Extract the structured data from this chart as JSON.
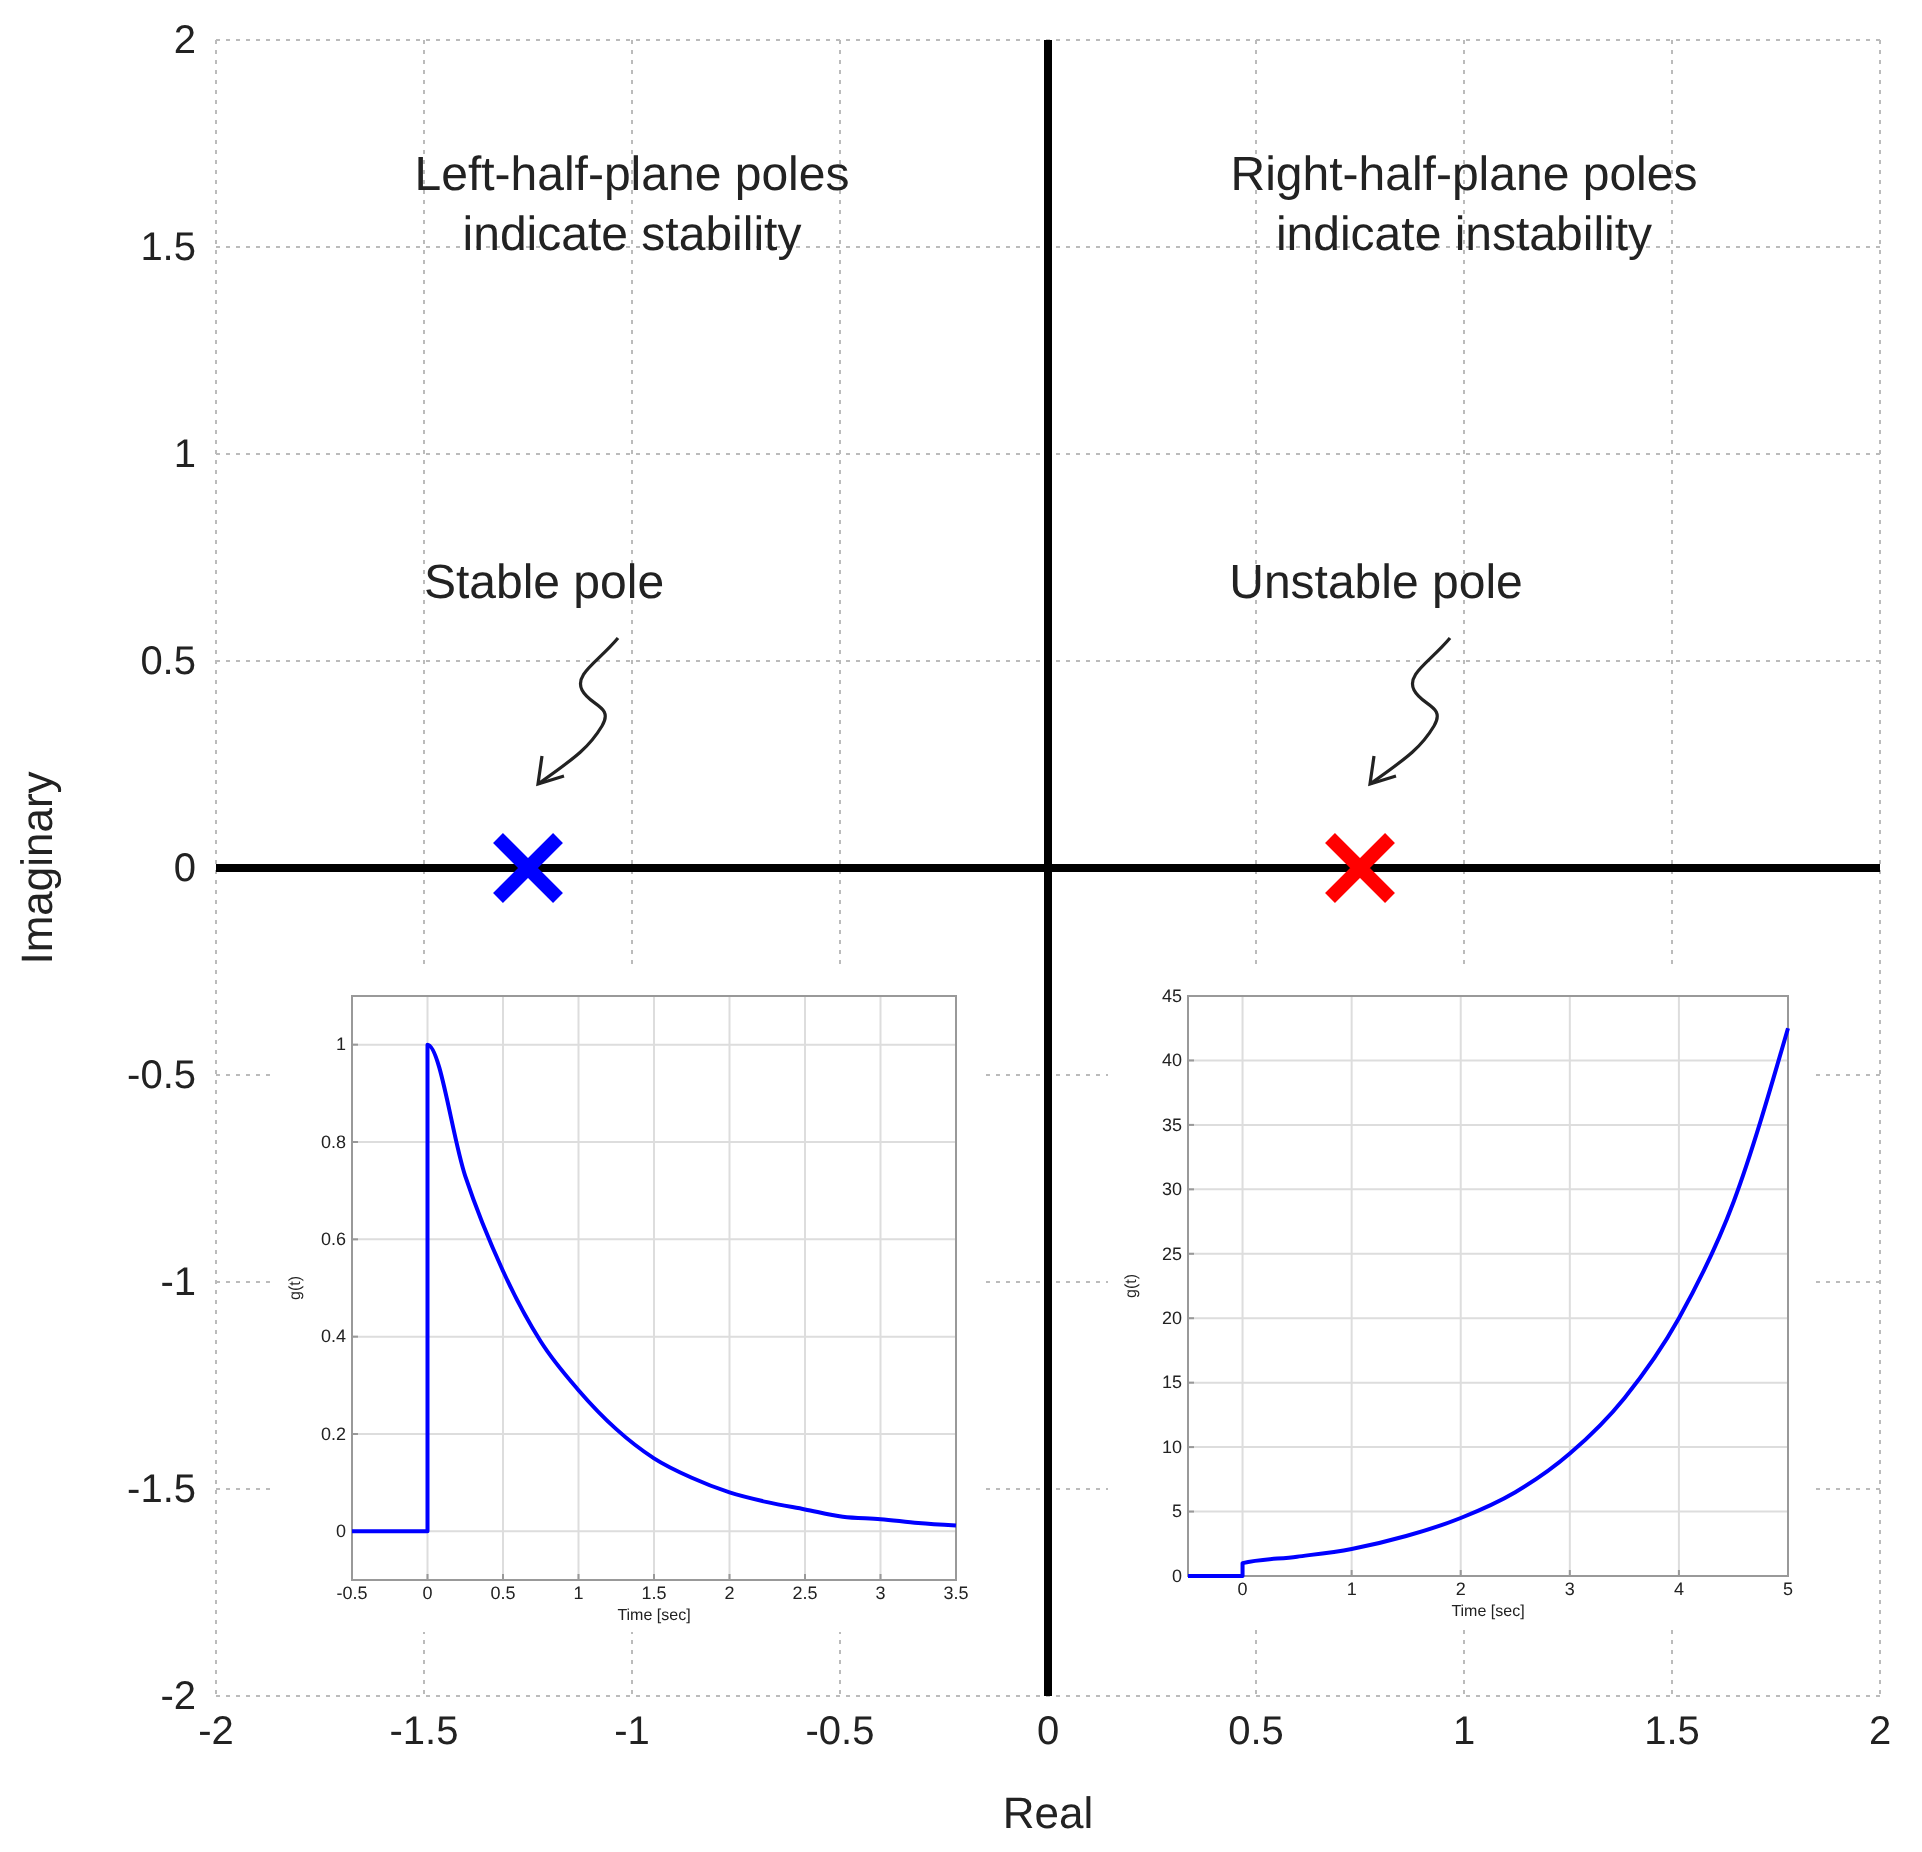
{
  "chart_data": [
    {
      "type": "scatter",
      "xlabel": "Real",
      "ylabel": "Imaginary",
      "xlim": [
        -2,
        2
      ],
      "ylim": [
        -2,
        2
      ],
      "xticks": [
        -2,
        -1.5,
        -1,
        -0.5,
        0,
        0.5,
        1,
        1.5,
        2
      ],
      "yticks": [
        -2,
        -1.5,
        -1,
        -0.5,
        0,
        0.5,
        1,
        1.5,
        2
      ],
      "grid": true,
      "marker": "cross",
      "series": [
        {
          "color": "#0000ff",
          "x": [
            -1.25
          ],
          "values": [
            0
          ]
        },
        {
          "color": "#ff0000",
          "x": [
            0.75
          ],
          "values": [
            0
          ]
        }
      ],
      "annotations": [
        "Left-half-plane poles\nindicate stability",
        "Right-half-plane poles\nindicate instability",
        "Stable pole",
        "Unstable pole"
      ]
    },
    {
      "type": "line",
      "xlabel": "Time   [sec]",
      "ylabel": "g(t)",
      "xlim": [
        -0.5,
        3.5
      ],
      "ylim": [
        -0.1,
        1.1
      ],
      "xticks": [
        -0.5,
        0,
        0.5,
        1,
        1.5,
        2,
        2.5,
        3,
        3.5
      ],
      "yticks": [
        0,
        0.2,
        0.4,
        0.6,
        0.8,
        1
      ],
      "grid": true,
      "series": [
        {
          "color": "#0000ff",
          "x": [
            -0.5,
            0,
            0,
            0.25,
            0.5,
            0.75,
            1,
            1.25,
            1.5,
            1.75,
            2,
            2.25,
            2.5,
            2.75,
            3,
            3.25,
            3.5
          ],
          "values": [
            0,
            0,
            1,
            0.73,
            0.535,
            0.39,
            0.29,
            0.21,
            0.15,
            0.11,
            0.08,
            0.06,
            0.045,
            0.03,
            0.025,
            0.017,
            0.012
          ]
        }
      ]
    },
    {
      "type": "line",
      "xlabel": "Time   [sec]",
      "ylabel": "g(t)",
      "xlim": [
        -0.5,
        5
      ],
      "ylim": [
        0,
        45
      ],
      "xticks": [
        0,
        1,
        2,
        3,
        4,
        5
      ],
      "yticks": [
        0,
        5,
        10,
        15,
        20,
        25,
        30,
        35,
        40,
        45
      ],
      "grid": true,
      "series": [
        {
          "color": "#0000ff",
          "x": [
            -0.5,
            0,
            0,
            0.5,
            1,
            1.5,
            2,
            2.5,
            3,
            3.5,
            4,
            4.5,
            5
          ],
          "values": [
            0,
            0,
            1,
            1.5,
            2.1,
            3.1,
            4.5,
            6.5,
            9.5,
            13.8,
            20,
            29,
            42.5
          ]
        }
      ]
    }
  ]
}
